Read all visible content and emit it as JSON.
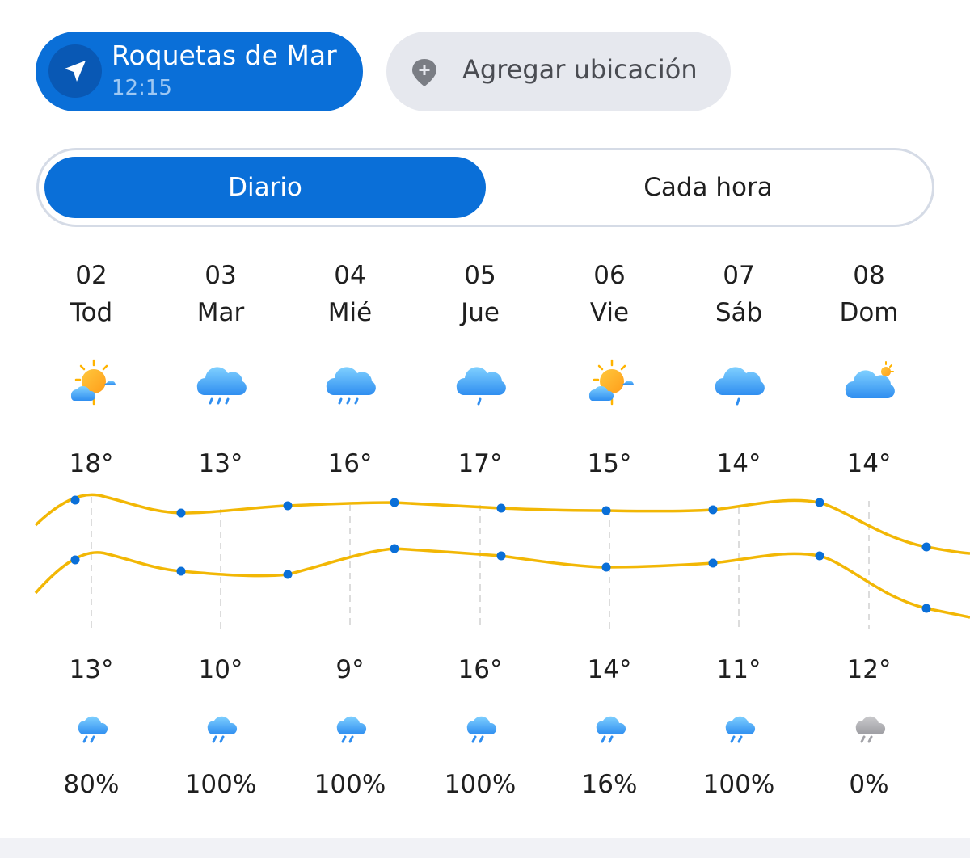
{
  "location": {
    "name": "Roquetas de Mar",
    "time": "12:15"
  },
  "add_location": {
    "label": "Agregar ubicación"
  },
  "view_toggle": {
    "daily_label": "Diario",
    "hourly_label": "Cada hora",
    "active": "daily"
  },
  "colors": {
    "accent": "#0a6fd8",
    "curve": "#f2b705",
    "point": "#0a6fd8"
  },
  "days": [
    {
      "num": "02",
      "name": "Tod",
      "icon": "sun-cloud-icon",
      "high": "18°",
      "low": "13°",
      "rain_icon": "rain-cloud-icon",
      "precip": "80%"
    },
    {
      "num": "03",
      "name": "Mar",
      "icon": "heavy-rain-icon",
      "high": "13°",
      "low": "10°",
      "rain_icon": "rain-cloud-icon",
      "precip": "100%"
    },
    {
      "num": "04",
      "name": "Mié",
      "icon": "heavy-rain-icon",
      "high": "16°",
      "low": "9°",
      "rain_icon": "rain-cloud-icon",
      "precip": "100%"
    },
    {
      "num": "05",
      "name": "Jue",
      "icon": "light-rain-icon",
      "high": "17°",
      "low": "16°",
      "rain_icon": "rain-cloud-icon",
      "precip": "100%"
    },
    {
      "num": "06",
      "name": "Vie",
      "icon": "sun-cloud-icon",
      "high": "15°",
      "low": "14°",
      "rain_icon": "rain-cloud-icon",
      "precip": "16%"
    },
    {
      "num": "07",
      "name": "Sáb",
      "icon": "light-rain-icon",
      "high": "14°",
      "low": "11°",
      "rain_icon": "rain-cloud-icon",
      "precip": "100%"
    },
    {
      "num": "08",
      "name": "Dom",
      "icon": "cloudy-sun-icon",
      "high": "14°",
      "low": "12°",
      "rain_icon": "grey-rain-cloud-icon",
      "precip": "0%"
    }
  ]
}
